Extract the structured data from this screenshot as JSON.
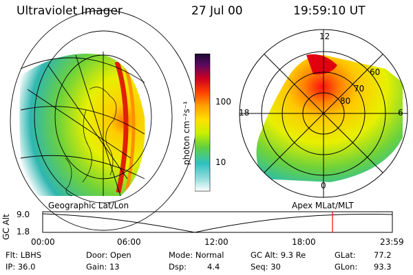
{
  "header": {
    "instrument": "Ultraviolet Imager",
    "date": "27 Jul 00",
    "time": "19:59:10 UT"
  },
  "left_panel_label": "Geographic Lat/Lon",
  "right_panel_label": "Apex MLat/MLT",
  "colorbar": {
    "unit_label": "photon cm⁻²s⁻¹",
    "ticks": [
      "100",
      "10"
    ]
  },
  "polar_plot": {
    "mlt_labels": {
      "top": "12",
      "left": "18",
      "right": "6",
      "bottom": "0"
    },
    "lat_labels": [
      "60",
      "70",
      "80"
    ]
  },
  "timeline": {
    "axis_label": "GC Alt",
    "y_ticks": [
      "9.0",
      "1.8"
    ],
    "x_ticks": [
      "00:00",
      "06:00",
      "12:00",
      "18:00",
      "23:59"
    ],
    "marker_color": "#ff0000"
  },
  "info": {
    "flt": "Flt: LBHS",
    "ip": "IP: 36.0",
    "door": "Door: Open",
    "gain": "Gain: 13",
    "mode": "Mode: Normal",
    "dsp_label": "Dsp:",
    "dsp_value": "4.4",
    "gc_alt": "GC Alt: 9.3 Re",
    "seq": "Seq: 30",
    "glat_label": "GLat:",
    "glat_value": "77.2",
    "glon_label": "GLon:",
    "glon_value": "93.3"
  }
}
